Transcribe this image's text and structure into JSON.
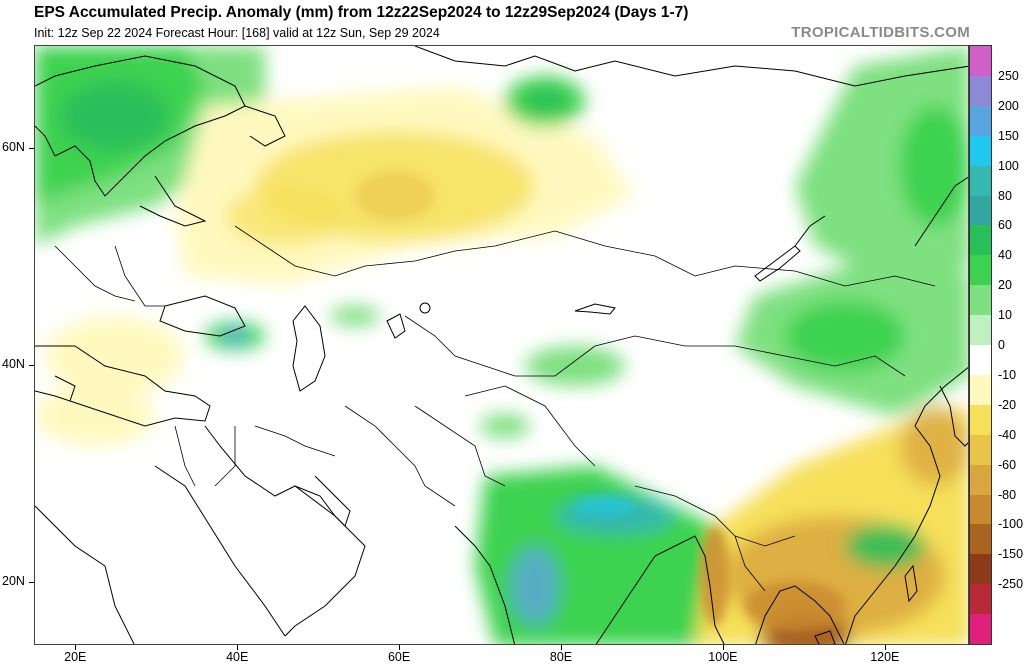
{
  "header": {
    "title": "EPS Accumulated Precip. Anomaly (mm) from 12z22Sep2024 to 12z29Sep2024 (Days 1-7)",
    "subtitle": "Init: 12z Sep 22 2024   Forecast Hour: [168]   valid at 12z Sun, Sep 29 2024",
    "site": "TROPICALTIDBITS.COM"
  },
  "axes": {
    "lat_labels": [
      {
        "text": "60N",
        "lat": 60
      },
      {
        "text": "40N",
        "lat": 40
      },
      {
        "text": "20N",
        "lat": 20
      }
    ],
    "lon_labels": [
      {
        "text": "20E",
        "lon": 20
      },
      {
        "text": "40E",
        "lon": 40
      },
      {
        "text": "60E",
        "lon": 60
      },
      {
        "text": "80E",
        "lon": 80
      },
      {
        "text": "100E",
        "lon": 100
      },
      {
        "text": "120E",
        "lon": 120
      }
    ],
    "lon_range": [
      14.9,
      130.4
    ],
    "lat_range": [
      14.2,
      69.5
    ]
  },
  "colorbar": {
    "labels": [
      "250",
      "200",
      "150",
      "100",
      "80",
      "60",
      "40",
      "20",
      "10",
      "0",
      "-10",
      "-20",
      "-40",
      "-60",
      "-80",
      "-100",
      "-150",
      "-250"
    ],
    "colors": [
      "#d060c8",
      "#8c8ad6",
      "#5aa4e0",
      "#20c8f0",
      "#34b8b0",
      "#33a6a0",
      "#2bbf5a",
      "#3cd250",
      "#7ee080",
      "#bff0bf",
      "#ffffff",
      "#fff9c0",
      "#f6e05a",
      "#e9c44a",
      "#d9a640",
      "#c88a30",
      "#a86420",
      "#8c3a18",
      "#b82a38",
      "#e0207a"
    ]
  }
}
